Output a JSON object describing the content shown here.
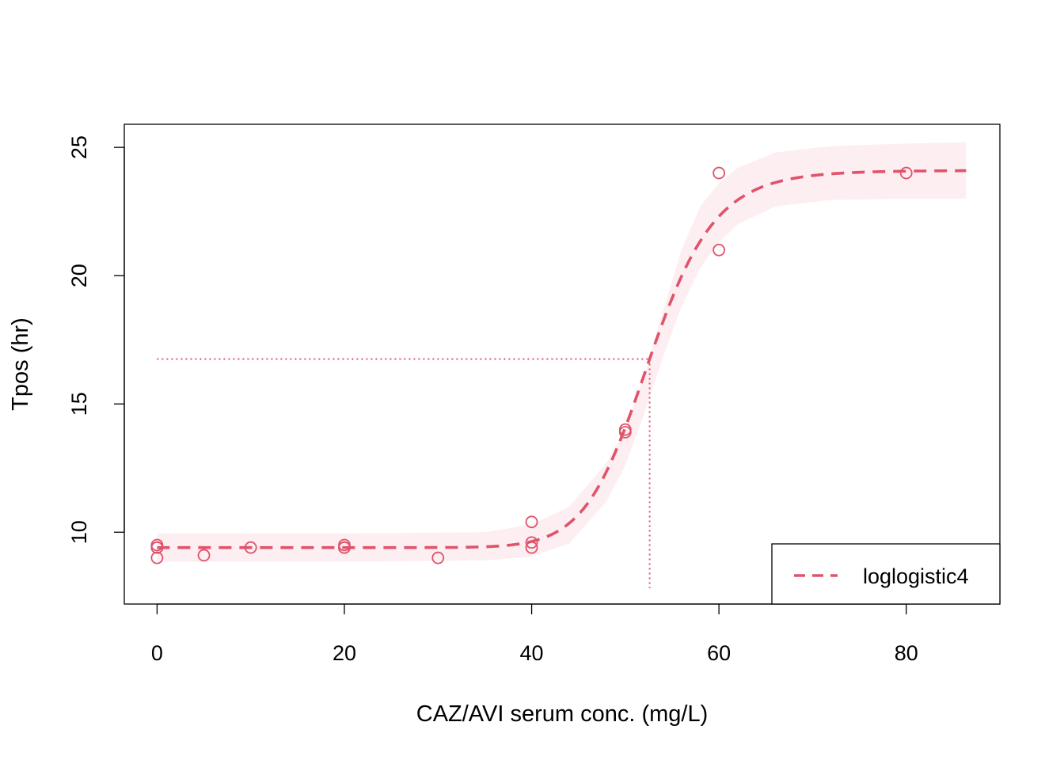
{
  "chart_data": {
    "type": "scatter",
    "title": "",
    "xlabel": "CAZ/AVI serum conc. (mg/L)",
    "ylabel": "Tpos (hr)",
    "xlim": [
      -3.5,
      90
    ],
    "ylim": [
      7.2,
      25.9
    ],
    "x_ticks": [
      0,
      20,
      40,
      60,
      80
    ],
    "y_ticks": [
      10,
      15,
      20,
      25
    ],
    "grid": false,
    "legend_position": "bottom-right",
    "colors": {
      "series": "#df536b",
      "band": "#fdeef1",
      "axis": "#000000"
    },
    "points": {
      "x": [
        0,
        0,
        0,
        0,
        5,
        10,
        20,
        20,
        20,
        30,
        40,
        40,
        40,
        50,
        50,
        60,
        60,
        80
      ],
      "y": [
        9.5,
        9.4,
        9.4,
        9.0,
        9.1,
        9.4,
        9.5,
        9.4,
        9.4,
        9.0,
        10.4,
        9.6,
        9.4,
        14.0,
        13.9,
        24.0,
        21.0,
        24.0
      ]
    },
    "fit": {
      "name": "loglogistic4",
      "model": "log-logistic (4 parameter)",
      "lower": 9.4,
      "upper": 24.1,
      "ed50": 52.6,
      "slope": 15,
      "x_range": [
        0,
        86.4
      ],
      "band": {
        "x": [
          0,
          20,
          35,
          40,
          44,
          48,
          50,
          52,
          54,
          56,
          58,
          60,
          62,
          66,
          72,
          80,
          86.4
        ],
        "lower": [
          8.85,
          8.85,
          8.9,
          9.05,
          9.55,
          11.2,
          12.6,
          14.6,
          16.8,
          18.8,
          20.3,
          21.3,
          22.0,
          22.7,
          22.95,
          23.0,
          23.0
        ],
        "upper": [
          9.95,
          9.95,
          10.0,
          10.3,
          11.0,
          12.7,
          14.0,
          16.1,
          18.6,
          21.0,
          22.7,
          23.6,
          24.2,
          24.8,
          25.05,
          25.15,
          25.2
        ]
      }
    },
    "ed50_marker": {
      "x": 52.6,
      "y": 16.75
    },
    "legend": {
      "entries": [
        {
          "label": "loglogistic4",
          "line_style": "dashed"
        }
      ]
    }
  }
}
